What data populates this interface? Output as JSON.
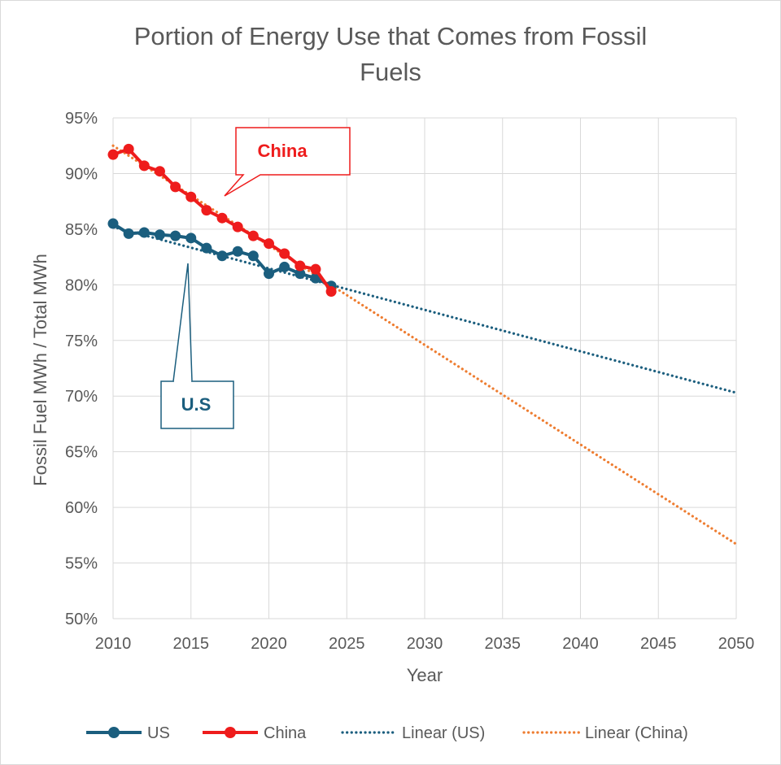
{
  "chart_data": {
    "type": "line",
    "title_line1": "Portion of Energy Use that Comes from Fossil",
    "title_line2": "Fuels",
    "xlabel": "Year",
    "ylabel": "Fossil Fuel MWh / Total MWh",
    "xlim": [
      2010,
      2050
    ],
    "ylim": [
      0.5,
      0.95
    ],
    "x_ticks": [
      {
        "value": 2010,
        "label": "2010"
      },
      {
        "value": 2015,
        "label": "2015"
      },
      {
        "value": 2020,
        "label": "2020"
      },
      {
        "value": 2025,
        "label": "2025"
      },
      {
        "value": 2030,
        "label": "2030"
      },
      {
        "value": 2035,
        "label": "2035"
      },
      {
        "value": 2040,
        "label": "2040"
      },
      {
        "value": 2045,
        "label": "2045"
      },
      {
        "value": 2050,
        "label": "2050"
      }
    ],
    "y_ticks": [
      {
        "value": 0.5,
        "label": "50%"
      },
      {
        "value": 0.55,
        "label": "55%"
      },
      {
        "value": 0.6,
        "label": "60%"
      },
      {
        "value": 0.65,
        "label": "65%"
      },
      {
        "value": 0.7,
        "label": "70%"
      },
      {
        "value": 0.75,
        "label": "75%"
      },
      {
        "value": 0.8,
        "label": "80%"
      },
      {
        "value": 0.85,
        "label": "85%"
      },
      {
        "value": 0.9,
        "label": "90%"
      },
      {
        "value": 0.95,
        "label": "95%"
      }
    ],
    "grid": true,
    "legend_position": "bottom",
    "series": [
      {
        "name": "US",
        "color": "#1b5e7e",
        "x": [
          2010,
          2011,
          2012,
          2013,
          2014,
          2015,
          2016,
          2017,
          2018,
          2019,
          2020,
          2021,
          2022,
          2023,
          2024
        ],
        "y": [
          0.855,
          0.846,
          0.847,
          0.845,
          0.844,
          0.842,
          0.833,
          0.826,
          0.83,
          0.826,
          0.81,
          0.816,
          0.81,
          0.806,
          0.799
        ]
      },
      {
        "name": "China",
        "color": "#ee1c1c",
        "x": [
          2010,
          2011,
          2012,
          2013,
          2014,
          2015,
          2016,
          2017,
          2018,
          2019,
          2020,
          2021,
          2022,
          2023,
          2024
        ],
        "y": [
          0.917,
          0.922,
          0.907,
          0.902,
          0.888,
          0.879,
          0.867,
          0.86,
          0.852,
          0.844,
          0.837,
          0.828,
          0.817,
          0.814,
          0.794
        ]
      }
    ],
    "trendlines": [
      {
        "name": "Linear (US)",
        "color": "#1b5e7e",
        "x": [
          2010,
          2050
        ],
        "y": [
          0.852,
          0.703
        ]
      },
      {
        "name": "Linear (China)",
        "color": "#ee7d31",
        "x": [
          2010,
          2050
        ],
        "y": [
          0.925,
          0.567
        ]
      }
    ],
    "annotations": [
      {
        "label": "China",
        "color": "#ee1c1c"
      },
      {
        "label": "U.S",
        "color": "#1b5e7e"
      }
    ]
  }
}
